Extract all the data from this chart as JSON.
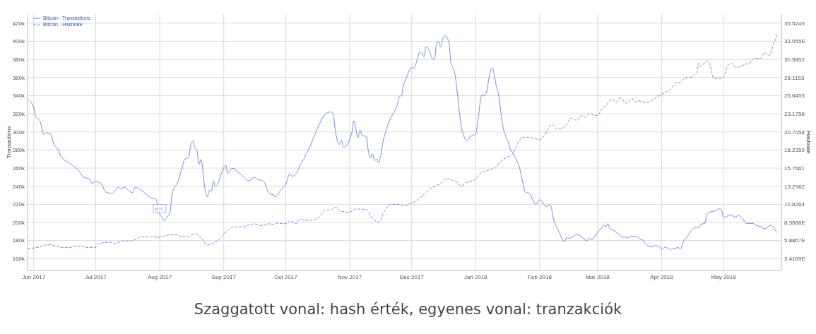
{
  "chart_data": {
    "type": "line",
    "ylabel": "Transactions",
    "y2label": "Hashrate",
    "annotations": [
      {
        "text": "BTC",
        "x": "2017-08-01",
        "y": 215000
      },
      "Szaggatott vonal: hash érték, egyenes vonal: tranzakciók"
    ],
    "xlim": [
      "2017-05-29",
      "2018-05-29"
    ],
    "xticks": [
      {
        "value": "2017-06-01",
        "label": "Jun 2017"
      },
      {
        "value": "2017-07-01",
        "label": "Jul 2017"
      },
      {
        "value": "2017-08-01",
        "label": "Aug 2017"
      },
      {
        "value": "2017-09-01",
        "label": "Sep 2017"
      },
      {
        "value": "2017-10-01",
        "label": "Oct 2017"
      },
      {
        "value": "2017-11-01",
        "label": "Nov 2017"
      },
      {
        "value": "2017-12-01",
        "label": "Dec 2017"
      },
      {
        "value": "2018-01-01",
        "label": "Jan 2018"
      },
      {
        "value": "2018-02-01",
        "label": "Feb 2018"
      },
      {
        "value": "2018-03-01",
        "label": "Mar 2018"
      },
      {
        "value": "2018-04-01",
        "label": "Apr 2018"
      },
      {
        "value": "2018-05-01",
        "label": "May 2018"
      }
    ],
    "ylim": [
      147000,
      430000
    ],
    "yticks": [
      {
        "value": 160000,
        "label": "160k"
      },
      {
        "value": 180000,
        "label": "180k"
      },
      {
        "value": 200000,
        "label": "200k"
      },
      {
        "value": 220000,
        "label": "220k"
      },
      {
        "value": 240000,
        "label": "240k"
      },
      {
        "value": 260000,
        "label": "260k"
      },
      {
        "value": 280000,
        "label": "280k"
      },
      {
        "value": 300000,
        "label": "300k"
      },
      {
        "value": 320000,
        "label": "320k"
      },
      {
        "value": 340000,
        "label": "340k"
      },
      {
        "value": 360000,
        "label": "360k"
      },
      {
        "value": 380000,
        "label": "380k"
      },
      {
        "value": 400000,
        "label": "400k"
      },
      {
        "value": 420000,
        "label": "420k"
      }
    ],
    "y2lim": [
      1.8115,
      36.76
    ],
    "y2ticks": [
      {
        "value": 3.4169,
        "label": "3.4169E"
      },
      {
        "value": 5.8867,
        "label": "5.8867E"
      },
      {
        "value": 8.3566,
        "label": "8.3566E"
      },
      {
        "value": 10.8264,
        "label": "10.8264"
      },
      {
        "value": 13.2962,
        "label": "13.2962"
      },
      {
        "value": 15.7661,
        "label": "15.7661"
      },
      {
        "value": 18.2359,
        "label": "18.2359"
      },
      {
        "value": 20.7058,
        "label": "20.7058"
      },
      {
        "value": 23.1756,
        "label": "23.1756"
      },
      {
        "value": 25.6455,
        "label": "25.6455"
      },
      {
        "value": 28.1153,
        "label": "28.1153"
      },
      {
        "value": 30.5852,
        "label": "30.5852"
      },
      {
        "value": 33.055,
        "label": "33.055E"
      },
      {
        "value": 35.5249,
        "label": "35.5249"
      }
    ],
    "grid": true,
    "legend": "top left",
    "series": [
      {
        "name": "Bitcoin - Transactions",
        "color": "#6f8fe3",
        "line_style": "solid",
        "x": [
          "2017-05-29",
          "2017-06-01",
          "2017-06-02",
          "2017-06-04",
          "2017-06-06",
          "2017-06-07",
          "2017-06-09",
          "2017-06-11",
          "2017-06-13",
          "2017-06-14",
          "2017-06-19",
          "2017-06-23",
          "2017-06-25",
          "2017-06-28",
          "2017-06-29",
          "2017-07-01",
          "2017-07-04",
          "2017-07-05",
          "2017-07-06",
          "2017-07-09",
          "2017-07-12",
          "2017-07-13",
          "2017-07-15",
          "2017-07-17",
          "2017-07-19",
          "2017-07-20",
          "2017-07-23",
          "2017-07-25",
          "2017-07-28",
          "2017-07-30",
          "2017-08-01",
          "2017-08-02",
          "2017-08-03",
          "2017-08-05",
          "2017-08-06",
          "2017-08-07",
          "2017-08-10",
          "2017-08-12",
          "2017-08-13",
          "2017-08-15",
          "2017-08-16",
          "2017-08-17",
          "2017-08-18",
          "2017-08-19",
          "2017-08-20",
          "2017-08-21",
          "2017-08-23",
          "2017-08-24",
          "2017-08-25",
          "2017-08-26",
          "2017-08-27",
          "2017-08-28",
          "2017-09-02",
          "2017-09-03",
          "2017-09-05",
          "2017-09-06",
          "2017-09-07",
          "2017-09-09",
          "2017-09-13",
          "2017-09-16",
          "2017-09-17",
          "2017-09-20",
          "2017-09-21",
          "2017-09-22",
          "2017-09-24",
          "2017-09-25",
          "2017-09-26",
          "2017-09-29",
          "2017-10-01",
          "2017-10-03",
          "2017-10-04",
          "2017-10-07",
          "2017-10-08",
          "2017-10-10",
          "2017-10-11",
          "2017-10-12",
          "2017-10-15",
          "2017-10-17",
          "2017-10-19",
          "2017-10-21",
          "2017-10-23",
          "2017-10-24",
          "2017-10-25",
          "2017-10-27",
          "2017-10-28",
          "2017-10-29",
          "2017-11-02",
          "2017-11-03",
          "2017-11-05",
          "2017-11-06",
          "2017-11-07",
          "2017-11-09",
          "2017-11-10",
          "2017-11-11",
          "2017-11-12",
          "2017-11-13",
          "2017-11-14",
          "2017-11-15",
          "2017-11-16",
          "2017-11-17",
          "2017-11-18",
          "2017-11-20",
          "2017-11-21",
          "2017-11-22",
          "2017-11-24",
          "2017-11-25",
          "2017-11-26",
          "2017-11-27",
          "2017-11-28",
          "2017-12-01",
          "2017-12-02",
          "2017-12-03",
          "2017-12-05",
          "2017-12-06",
          "2017-12-07",
          "2017-12-08",
          "2017-12-09",
          "2017-12-11",
          "2017-12-12",
          "2017-12-13",
          "2017-12-14",
          "2017-12-15",
          "2017-12-16",
          "2017-12-17",
          "2017-12-19",
          "2017-12-20",
          "2017-12-21",
          "2017-12-22",
          "2017-12-23",
          "2017-12-25",
          "2017-12-26",
          "2017-12-28",
          "2017-12-29",
          "2018-01-01",
          "2018-01-02",
          "2018-01-04",
          "2018-01-05",
          "2018-01-06",
          "2018-01-08",
          "2018-01-09",
          "2018-01-10",
          "2018-01-11",
          "2018-01-12",
          "2018-01-14",
          "2018-01-16",
          "2018-01-17",
          "2018-01-18",
          "2018-01-19",
          "2018-01-20",
          "2018-01-22",
          "2018-01-24",
          "2018-01-25",
          "2018-01-27",
          "2018-01-30",
          "2018-02-01",
          "2018-02-02",
          "2018-02-04",
          "2018-02-06",
          "2018-02-08",
          "2018-02-10",
          "2018-02-12",
          "2018-02-13",
          "2018-02-14",
          "2018-02-15",
          "2018-02-17",
          "2018-02-19",
          "2018-02-21",
          "2018-02-23",
          "2018-02-24",
          "2018-02-25",
          "2018-02-26",
          "2018-03-01",
          "2018-03-03",
          "2018-03-04",
          "2018-03-05",
          "2018-03-06",
          "2018-03-07",
          "2018-03-08",
          "2018-03-11",
          "2018-03-13",
          "2018-03-14",
          "2018-03-15",
          "2018-03-17",
          "2018-03-20",
          "2018-03-22",
          "2018-03-23",
          "2018-03-24",
          "2018-03-27",
          "2018-03-29",
          "2018-03-31",
          "2018-04-01",
          "2018-04-03",
          "2018-04-05",
          "2018-04-08",
          "2018-04-09",
          "2018-04-10",
          "2018-04-12",
          "2018-04-13",
          "2018-04-15",
          "2018-04-18",
          "2018-04-19",
          "2018-04-20",
          "2018-04-22",
          "2018-04-23",
          "2018-04-25",
          "2018-04-27",
          "2018-04-29",
          "2018-04-30",
          "2018-05-01",
          "2018-05-02",
          "2018-05-04",
          "2018-05-07",
          "2018-05-08",
          "2018-05-10",
          "2018-05-12",
          "2018-05-15",
          "2018-05-17",
          "2018-05-19",
          "2018-05-21",
          "2018-05-24",
          "2018-05-26",
          "2018-05-27"
        ],
        "values": [
          336000,
          327000,
          317000,
          312000,
          297000,
          299000,
          298000,
          285000,
          280000,
          273500,
          264400,
          256600,
          250000,
          248000,
          243300,
          245000,
          242000,
          237000,
          233600,
          232000,
          239000,
          237000,
          239000,
          235000,
          233000,
          238500,
          236000,
          232000,
          227000,
          226000,
          209600,
          206000,
          202000,
          207000,
          211000,
          232000,
          246000,
          262000,
          269600,
          272000,
          285000,
          290000,
          282600,
          280000,
          264400,
          269600,
          235700,
          228400,
          235200,
          234400,
          245600,
          239600,
          263000,
          254000,
          259600,
          259600,
          257000,
          254000,
          246000,
          250000,
          248000,
          245600,
          243000,
          236000,
          231000,
          230800,
          228400,
          237000,
          242000,
          254000,
          251000,
          257700,
          263000,
          271000,
          276000,
          280000,
          296600,
          307000,
          316000,
          321000,
          322000,
          320000,
          302000,
          286000,
          291000,
          283000,
          299000,
          312000,
          294000,
          302000,
          296000,
          295000,
          279000,
          271000,
          276000,
          268000,
          270000,
          266000,
          273500,
          288000,
          296600,
          311000,
          316000,
          320000,
          330000,
          339000,
          340000,
          351500,
          357000,
          371000,
          370000,
          375000,
          388000,
          386600,
          383000,
          394000,
          392000,
          381000,
          380000,
          397000,
          399500,
          394000,
          402000,
          406000,
          399500,
          376000,
          371000,
          363000,
          345000,
          306000,
          297000,
          290000,
          294000,
          298000,
          311700,
          341000,
          340000,
          342000,
          366600,
          370600,
          362800,
          350000,
          342000,
          308000,
          292600,
          287400,
          278500,
          277400,
          272000,
          262000,
          242000,
          233600,
          232000,
          220000,
          225000,
          223500,
          217500,
          219700,
          200600,
          191400,
          181000,
          178500,
          183000,
          182500,
          184000,
          187000,
          184500,
          180500,
          180000,
          182800,
          181000,
          189000,
          194000,
          196700,
          195400,
          198500,
          193000,
          192000,
          187600,
          183600,
          184000,
          183000,
          184500,
          184500,
          181000,
          180500,
          177000,
          173000,
          174400,
          173000,
          170400,
          173000,
          170400,
          171700,
          172500,
          170400,
          181000,
          183000,
          190000,
          194800,
          194000,
          198000,
          199000,
          209600,
          212000,
          212700,
          215000,
          213500,
          206000,
          206000,
          208400,
          206000,
          208000,
          204700,
          199000,
          199000,
          196700,
          195400,
          193000,
          197000,
          191400,
          188600
        ]
      },
      {
        "name": "Bitcoin - Hashrate",
        "color": "#6f8fe3",
        "line_style": "dashed",
        "axis": "y2",
        "x": [
          "2017-05-29",
          "2017-06-01",
          "2017-06-04",
          "2017-06-08",
          "2017-06-12",
          "2017-06-14",
          "2017-06-19",
          "2017-06-21",
          "2017-06-25",
          "2017-06-26",
          "2017-07-01",
          "2017-07-02",
          "2017-07-06",
          "2017-07-08",
          "2017-07-10",
          "2017-07-14",
          "2017-07-18",
          "2017-07-20",
          "2017-07-23",
          "2017-07-27",
          "2017-07-28",
          "2017-07-31",
          "2017-08-03",
          "2017-08-06",
          "2017-08-08",
          "2017-08-11",
          "2017-08-14",
          "2017-08-18",
          "2017-08-21",
          "2017-08-24",
          "2017-08-27",
          "2017-08-29",
          "2017-09-01",
          "2017-09-03",
          "2017-09-05",
          "2017-09-08",
          "2017-09-11",
          "2017-09-13",
          "2017-09-16",
          "2017-09-19",
          "2017-09-23",
          "2017-09-24",
          "2017-09-27",
          "2017-10-01",
          "2017-10-03",
          "2017-10-06",
          "2017-10-08",
          "2017-10-10",
          "2017-10-14",
          "2017-10-17",
          "2017-10-20",
          "2017-10-23",
          "2017-10-25",
          "2017-10-28",
          "2017-11-01",
          "2017-11-04",
          "2017-11-09",
          "2017-11-12",
          "2017-11-15",
          "2017-11-18",
          "2017-11-21",
          "2017-11-26",
          "2017-11-27",
          "2017-12-01",
          "2017-12-04",
          "2017-12-07",
          "2017-12-10",
          "2017-12-12",
          "2017-12-15",
          "2017-12-18",
          "2017-12-21",
          "2017-12-23",
          "2017-12-25",
          "2017-12-27",
          "2018-01-01",
          "2018-01-03",
          "2018-01-06",
          "2018-01-09",
          "2018-01-11",
          "2018-01-13",
          "2018-01-16",
          "2018-01-19",
          "2018-01-21",
          "2018-01-24",
          "2018-01-27",
          "2018-02-01",
          "2018-02-03",
          "2018-02-07",
          "2018-02-09",
          "2018-02-11",
          "2018-02-14",
          "2018-02-16",
          "2018-02-19",
          "2018-02-21",
          "2018-02-23",
          "2018-02-25",
          "2018-03-01",
          "2018-03-03",
          "2018-03-05",
          "2018-03-08",
          "2018-03-10",
          "2018-03-12",
          "2018-03-15",
          "2018-03-18",
          "2018-03-19",
          "2018-03-21",
          "2018-03-24",
          "2018-03-28",
          "2018-03-30",
          "2018-04-01",
          "2018-04-04",
          "2018-04-05",
          "2018-04-08",
          "2018-04-10",
          "2018-04-13",
          "2018-04-15",
          "2018-04-18",
          "2018-04-19",
          "2018-04-20",
          "2018-04-23",
          "2018-04-25",
          "2018-04-26",
          "2018-04-29",
          "2018-05-01",
          "2018-05-03",
          "2018-05-05",
          "2018-05-07",
          "2018-05-10",
          "2018-05-12",
          "2018-05-14",
          "2018-05-16",
          "2018-05-19",
          "2018-05-21",
          "2018-05-23",
          "2018-05-25",
          "2018-05-27"
        ],
        "values": [
          4.78,
          4.87,
          5.02,
          5.34,
          5.12,
          4.96,
          4.96,
          5.08,
          5.12,
          4.96,
          4.96,
          5.34,
          5.64,
          5.64,
          5.45,
          5.84,
          5.84,
          6.01,
          6.42,
          6.38,
          6.48,
          6.32,
          6.48,
          6.7,
          6.75,
          6.48,
          6.38,
          6.8,
          6.32,
          5.27,
          5.58,
          5.84,
          6.8,
          7.28,
          7.7,
          7.76,
          7.76,
          8.02,
          8.16,
          7.92,
          8.18,
          8.02,
          8.26,
          8.18,
          8.57,
          8.18,
          8.83,
          8.64,
          8.7,
          9.05,
          10.02,
          10.09,
          10.44,
          9.86,
          9.77,
          10.19,
          10.12,
          8.9,
          8.41,
          10.02,
          10.83,
          10.77,
          10.63,
          10.99,
          11.47,
          12.19,
          12.93,
          13.25,
          13.67,
          14.37,
          14.04,
          13.79,
          13.33,
          13.73,
          14.27,
          15.01,
          15.4,
          15.64,
          15.98,
          16.62,
          17.25,
          17.74,
          18.98,
          19.97,
          19.97,
          19.64,
          20.13,
          21.73,
          21.08,
          21.08,
          21.73,
          22.6,
          22.28,
          22.92,
          22.68,
          23.18,
          22.93,
          23.79,
          24.29,
          25.15,
          24.78,
          25.33,
          24.62,
          25.23,
          24.78,
          24.94,
          24.72,
          25.1,
          25.49,
          25.82,
          26.29,
          26.45,
          27.41,
          27.5,
          28.12,
          28.17,
          28.8,
          30.09,
          29.67,
          30.4,
          29.28,
          28.06,
          27.99,
          28.17,
          29.77,
          30.03,
          29.46,
          29.77,
          29.93,
          30.19,
          30.74,
          30.74,
          31.54,
          31.06,
          32.5,
          33.92
        ]
      }
    ]
  }
}
